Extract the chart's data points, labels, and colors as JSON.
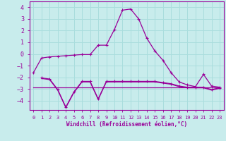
{
  "background_color": "#c8ecec",
  "grid_color": "#aadddd",
  "line_color": "#990099",
  "xlabel": "Windchill (Refroidissement éolien,°C)",
  "xlim": [
    -0.5,
    23.5
  ],
  "ylim": [
    -4.8,
    4.5
  ],
  "yticks": [
    -4,
    -3,
    -2,
    -1,
    0,
    1,
    2,
    3,
    4
  ],
  "xticks": [
    0,
    1,
    2,
    3,
    4,
    5,
    6,
    7,
    8,
    9,
    10,
    11,
    12,
    13,
    14,
    15,
    16,
    17,
    18,
    19,
    20,
    21,
    22,
    23
  ],
  "series1_x": [
    0,
    1,
    2,
    3,
    4,
    5,
    6,
    7,
    8,
    9,
    10,
    11,
    12,
    13,
    14,
    15,
    16,
    17,
    18,
    19,
    20,
    21,
    22,
    23
  ],
  "series1_y": [
    -1.6,
    -0.35,
    -0.25,
    -0.2,
    -0.15,
    -0.1,
    -0.05,
    -0.05,
    0.75,
    0.75,
    2.1,
    3.75,
    3.85,
    3.0,
    1.35,
    0.25,
    -0.55,
    -1.6,
    -2.4,
    -2.65,
    -2.8,
    -1.75,
    -2.75,
    -2.85
  ],
  "series2_x": [
    0,
    1,
    2,
    3,
    4,
    5,
    6,
    7,
    8,
    9,
    10,
    11,
    12,
    13,
    14,
    15,
    16,
    17,
    18,
    19,
    20,
    21,
    22,
    23
  ],
  "series2_y": [
    -2.85,
    -2.85,
    -2.85,
    -2.85,
    -2.85,
    -2.85,
    -2.85,
    -2.85,
    -2.85,
    -2.85,
    -2.85,
    -2.85,
    -2.85,
    -2.85,
    -2.85,
    -2.85,
    -2.85,
    -2.85,
    -2.85,
    -2.85,
    -2.85,
    -2.85,
    -2.85,
    -2.85
  ],
  "series3_x": [
    1,
    2,
    3,
    4,
    5,
    6,
    7,
    8,
    9,
    10,
    11,
    12,
    13,
    14,
    15,
    16,
    17,
    18,
    19,
    20,
    21,
    22,
    23
  ],
  "series3_y": [
    -2.05,
    -2.15,
    -3.05,
    -4.55,
    -3.25,
    -2.35,
    -2.35,
    -3.85,
    -2.35,
    -2.35,
    -2.35,
    -2.35,
    -2.35,
    -2.35,
    -2.35,
    -2.45,
    -2.55,
    -2.75,
    -2.85,
    -2.85,
    -2.85,
    -3.05,
    -2.9
  ],
  "series4_x": [
    1,
    2,
    3,
    4,
    5,
    6,
    7,
    8,
    9,
    10,
    11,
    12,
    13,
    14,
    15,
    16,
    17,
    18,
    19,
    20,
    21,
    22,
    23
  ],
  "series4_y": [
    -2.1,
    -2.2,
    -3.1,
    -4.6,
    -3.3,
    -2.4,
    -2.4,
    -3.9,
    -2.4,
    -2.4,
    -2.4,
    -2.4,
    -2.4,
    -2.4,
    -2.4,
    -2.5,
    -2.6,
    -2.8,
    -2.9,
    -2.9,
    -2.9,
    -3.1,
    -2.95
  ]
}
